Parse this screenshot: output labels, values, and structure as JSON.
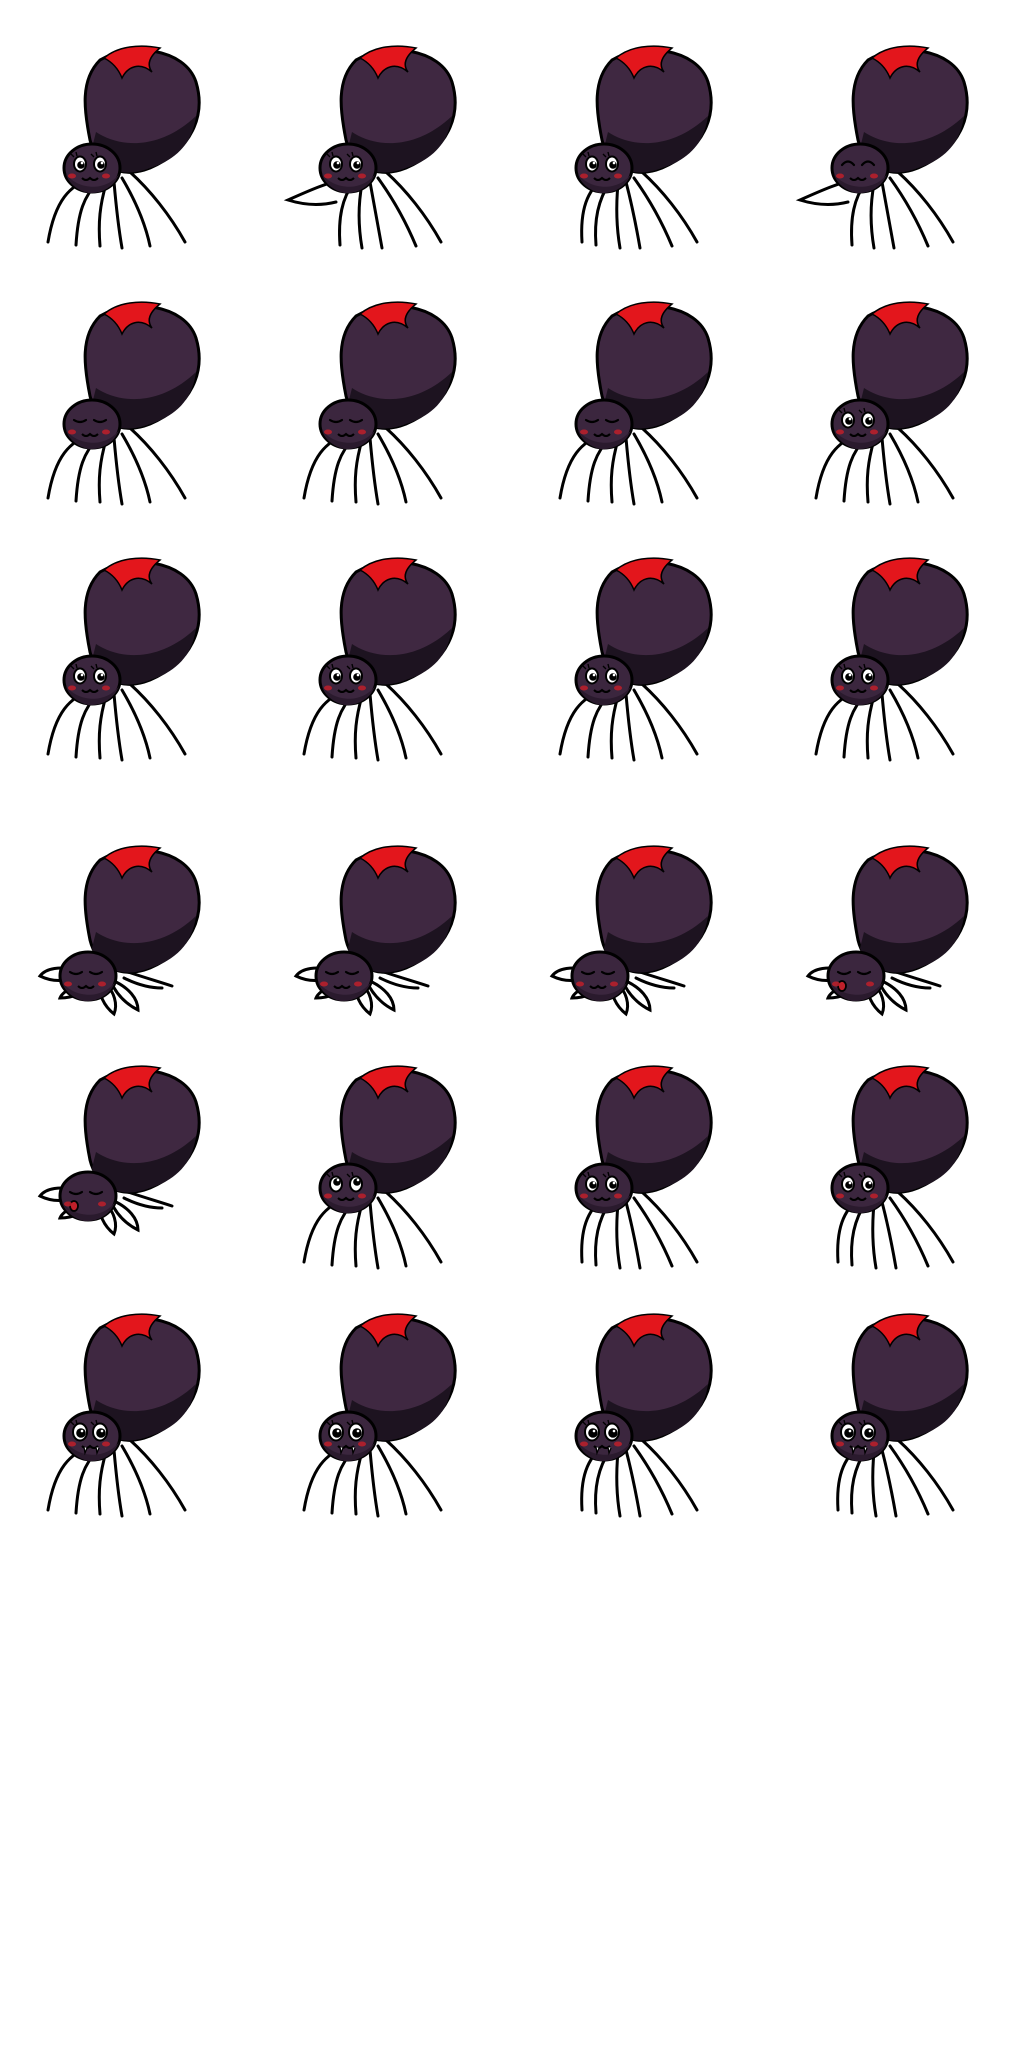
{
  "sprite_sheet": {
    "columns": 4,
    "rows_used": 6,
    "colors": {
      "background": "#ffffff",
      "body": "#3f2841",
      "body_shadow": "#1d1320",
      "head": "#3b263e",
      "head_shadow": "#2a1a2d",
      "marking": "#e3161c",
      "outline": "#000000",
      "blush": "#c0202a",
      "eye_white": "#ffffff"
    },
    "frames": [
      {
        "pose": "stand",
        "eyes": "open",
        "mouth": "smile",
        "legs_style": "normal"
      },
      {
        "pose": "reach",
        "eyes": "open",
        "mouth": "smile",
        "legs_style": "reach"
      },
      {
        "pose": "stand",
        "eyes": "open",
        "mouth": "smile",
        "legs_style": "tucked"
      },
      {
        "pose": "reach",
        "eyes": "happy",
        "mouth": "smile",
        "legs_style": "reach"
      },
      {
        "pose": "stand",
        "eyes": "closed",
        "mouth": "smile",
        "legs_style": "normal"
      },
      {
        "pose": "stand",
        "eyes": "closed",
        "mouth": "smile",
        "legs_style": "normal"
      },
      {
        "pose": "stand",
        "eyes": "closed",
        "mouth": "smile",
        "legs_style": "normal"
      },
      {
        "pose": "stand",
        "eyes": "open",
        "mouth": "smile",
        "legs_style": "normal"
      },
      {
        "pose": "stand",
        "eyes": "open",
        "mouth": "smile",
        "legs_style": "normal"
      },
      {
        "pose": "stand",
        "eyes": "open",
        "mouth": "smile",
        "legs_style": "normal"
      },
      {
        "pose": "stand",
        "eyes": "open",
        "mouth": "smile",
        "legs_style": "normal"
      },
      {
        "pose": "stand",
        "eyes": "open",
        "mouth": "smile",
        "legs_style": "normal"
      },
      {
        "pose": "sleep",
        "eyes": "closed",
        "mouth": "smile",
        "legs_style": "splayed"
      },
      {
        "pose": "sleep",
        "eyes": "closed",
        "mouth": "smile",
        "legs_style": "splayed"
      },
      {
        "pose": "sleep",
        "eyes": "closed",
        "mouth": "smile",
        "legs_style": "splayed"
      },
      {
        "pose": "sleep",
        "eyes": "closed",
        "mouth": "open",
        "legs_style": "splayed"
      },
      {
        "pose": "sleep",
        "eyes": "closed",
        "mouth": "open",
        "legs_style": "splayed"
      },
      {
        "pose": "stand",
        "eyes": "look-up",
        "mouth": "smile",
        "legs_style": "normal"
      },
      {
        "pose": "stand",
        "eyes": "open",
        "mouth": "smile",
        "legs_style": "tucked"
      },
      {
        "pose": "stand",
        "eyes": "open",
        "mouth": "smile",
        "legs_style": "tucked"
      },
      {
        "pose": "stand",
        "eyes": "wide",
        "mouth": "fangs",
        "legs_style": "normal"
      },
      {
        "pose": "stand",
        "eyes": "wide",
        "mouth": "fangs",
        "legs_style": "normal"
      },
      {
        "pose": "stand",
        "eyes": "wide",
        "mouth": "fangs",
        "legs_style": "tucked"
      },
      {
        "pose": "stand",
        "eyes": "wide",
        "mouth": "fangs",
        "legs_style": "tucked"
      }
    ]
  }
}
